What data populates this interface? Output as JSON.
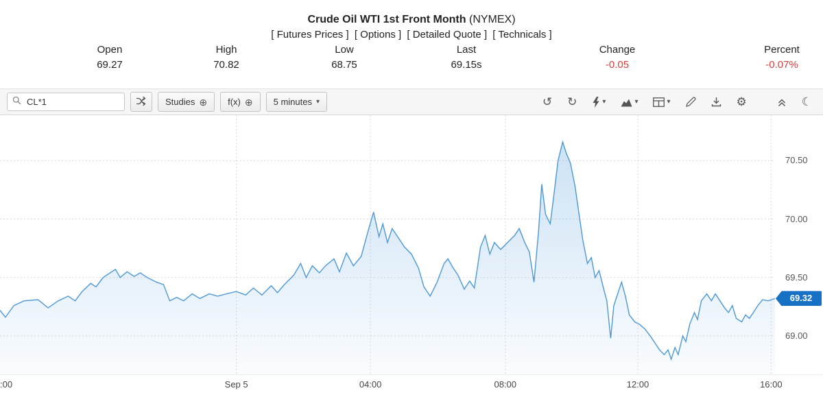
{
  "header": {
    "title_main": "Crude Oil WTI 1st Front Month",
    "title_exchange": "(NYMEX)",
    "links": [
      "[ Futures Prices ]",
      "[ Options ]",
      "[ Detailed Quote ]",
      "[ Technicals ]"
    ],
    "quote_fields": [
      {
        "label": "Open",
        "value": "69.27"
      },
      {
        "label": "High",
        "value": "70.82"
      },
      {
        "label": "Low",
        "value": "68.75"
      },
      {
        "label": "Last",
        "value": "69.15s"
      },
      {
        "label": "Change",
        "value": "-0.05"
      },
      {
        "label": "Percent",
        "value": "-0.07%"
      }
    ],
    "negative_color": "#e03c3c"
  },
  "toolbar": {
    "symbol_value": "CL*1",
    "studies_label": "Studies",
    "fx_label": "f(x)",
    "interval_label": "5 minutes",
    "plus_icon": "⊕",
    "caret_icon": "▾",
    "undo_icon": "↺",
    "redo_icon": "↻",
    "gear_icon": "⚙",
    "moon_icon": "☾"
  },
  "chart_data": {
    "type": "area",
    "title": "Crude Oil WTI 1st Front Month (NYMEX), 5 minute chart",
    "interval": "5 minutes",
    "ylim": [
      68.67,
      70.89
    ],
    "grid": true,
    "line_color": "#4a97d9",
    "fill_top": "rgba(74,151,217,0.28)",
    "fill_bottom": "rgba(74,151,217,0.03)",
    "grid_color": "#d9d9d9",
    "marker_color": "#1670c4",
    "y_ticks": [
      {
        "price": 70.5,
        "label": "70.50"
      },
      {
        "price": 70.0,
        "label": "70.00"
      },
      {
        "price": 69.5,
        "label": "69.50"
      },
      {
        "price": 69.0,
        "label": "69.00"
      }
    ],
    "x_ticks": [
      {
        "label": ":00",
        "x": 0,
        "grid": false
      },
      {
        "label": "Sep 5",
        "x": 0.305,
        "grid": true
      },
      {
        "label": "04:00",
        "x": 0.478,
        "grid": true
      },
      {
        "label": "08:00",
        "x": 0.652,
        "grid": true
      },
      {
        "label": "12:00",
        "x": 0.823,
        "grid": true
      },
      {
        "label": "16:00",
        "x": 0.995,
        "grid": true
      }
    ],
    "last_marker": {
      "label": "69.32",
      "price": 69.32
    },
    "points": [
      [
        0,
        69.22
      ],
      [
        0.007,
        69.16
      ],
      [
        0.018,
        69.26
      ],
      [
        0.031,
        69.3
      ],
      [
        0.049,
        69.31
      ],
      [
        0.062,
        69.24
      ],
      [
        0.075,
        69.3
      ],
      [
        0.088,
        69.34
      ],
      [
        0.097,
        69.3
      ],
      [
        0.106,
        69.38
      ],
      [
        0.117,
        69.45
      ],
      [
        0.124,
        69.42
      ],
      [
        0.133,
        69.5
      ],
      [
        0.142,
        69.54
      ],
      [
        0.149,
        69.57
      ],
      [
        0.155,
        69.5
      ],
      [
        0.164,
        69.55
      ],
      [
        0.173,
        69.51
      ],
      [
        0.181,
        69.54
      ],
      [
        0.19,
        69.5
      ],
      [
        0.202,
        69.46
      ],
      [
        0.211,
        69.44
      ],
      [
        0.219,
        69.3
      ],
      [
        0.228,
        69.33
      ],
      [
        0.237,
        69.3
      ],
      [
        0.248,
        69.36
      ],
      [
        0.258,
        69.32
      ],
      [
        0.27,
        69.36
      ],
      [
        0.281,
        69.34
      ],
      [
        0.292,
        69.36
      ],
      [
        0.305,
        69.38
      ],
      [
        0.317,
        69.35
      ],
      [
        0.327,
        69.41
      ],
      [
        0.338,
        69.35
      ],
      [
        0.35,
        69.43
      ],
      [
        0.358,
        69.37
      ],
      [
        0.367,
        69.44
      ],
      [
        0.379,
        69.52
      ],
      [
        0.388,
        69.62
      ],
      [
        0.395,
        69.5
      ],
      [
        0.403,
        69.6
      ],
      [
        0.412,
        69.54
      ],
      [
        0.42,
        69.6
      ],
      [
        0.431,
        69.66
      ],
      [
        0.438,
        69.55
      ],
      [
        0.447,
        69.71
      ],
      [
        0.456,
        69.6
      ],
      [
        0.466,
        69.68
      ],
      [
        0.475,
        69.9
      ],
      [
        0.482,
        70.06
      ],
      [
        0.489,
        69.85
      ],
      [
        0.494,
        69.96
      ],
      [
        0.5,
        69.8
      ],
      [
        0.506,
        69.92
      ],
      [
        0.513,
        69.85
      ],
      [
        0.522,
        69.76
      ],
      [
        0.531,
        69.7
      ],
      [
        0.54,
        69.58
      ],
      [
        0.547,
        69.42
      ],
      [
        0.555,
        69.34
      ],
      [
        0.564,
        69.46
      ],
      [
        0.573,
        69.62
      ],
      [
        0.578,
        69.66
      ],
      [
        0.584,
        69.59
      ],
      [
        0.591,
        69.52
      ],
      [
        0.599,
        69.4
      ],
      [
        0.606,
        69.47
      ],
      [
        0.612,
        69.41
      ],
      [
        0.62,
        69.76
      ],
      [
        0.626,
        69.86
      ],
      [
        0.632,
        69.7
      ],
      [
        0.638,
        69.8
      ],
      [
        0.646,
        69.74
      ],
      [
        0.655,
        69.8
      ],
      [
        0.664,
        69.86
      ],
      [
        0.67,
        69.92
      ],
      [
        0.677,
        69.8
      ],
      [
        0.683,
        69.72
      ],
      [
        0.689,
        69.46
      ],
      [
        0.695,
        69.9
      ],
      [
        0.699,
        70.3
      ],
      [
        0.704,
        70.04
      ],
      [
        0.71,
        69.96
      ],
      [
        0.715,
        70.22
      ],
      [
        0.72,
        70.5
      ],
      [
        0.726,
        70.66
      ],
      [
        0.731,
        70.56
      ],
      [
        0.736,
        70.48
      ],
      [
        0.742,
        70.28
      ],
      [
        0.747,
        70.05
      ],
      [
        0.752,
        69.82
      ],
      [
        0.758,
        69.62
      ],
      [
        0.763,
        69.67
      ],
      [
        0.768,
        69.5
      ],
      [
        0.773,
        69.56
      ],
      [
        0.779,
        69.4
      ],
      [
        0.783,
        69.3
      ],
      [
        0.788,
        68.98
      ],
      [
        0.792,
        69.26
      ],
      [
        0.797,
        69.36
      ],
      [
        0.802,
        69.46
      ],
      [
        0.807,
        69.34
      ],
      [
        0.812,
        69.18
      ],
      [
        0.819,
        69.12
      ],
      [
        0.825,
        69.1
      ],
      [
        0.832,
        69.06
      ],
      [
        0.839,
        69.0
      ],
      [
        0.845,
        68.94
      ],
      [
        0.851,
        68.88
      ],
      [
        0.857,
        68.84
      ],
      [
        0.862,
        68.88
      ],
      [
        0.866,
        68.8
      ],
      [
        0.871,
        68.9
      ],
      [
        0.875,
        68.84
      ],
      [
        0.881,
        69.0
      ],
      [
        0.885,
        68.95
      ],
      [
        0.89,
        69.1
      ],
      [
        0.896,
        69.2
      ],
      [
        0.9,
        69.14
      ],
      [
        0.905,
        69.3
      ],
      [
        0.912,
        69.36
      ],
      [
        0.918,
        69.3
      ],
      [
        0.923,
        69.36
      ],
      [
        0.929,
        69.3
      ],
      [
        0.935,
        69.24
      ],
      [
        0.94,
        69.2
      ],
      [
        0.945,
        69.26
      ],
      [
        0.95,
        69.15
      ],
      [
        0.957,
        69.12
      ],
      [
        0.962,
        69.18
      ],
      [
        0.967,
        69.15
      ],
      [
        0.973,
        69.21
      ],
      [
        0.978,
        69.26
      ],
      [
        0.984,
        69.31
      ],
      [
        0.991,
        69.3
      ],
      [
        1,
        69.32
      ]
    ]
  }
}
